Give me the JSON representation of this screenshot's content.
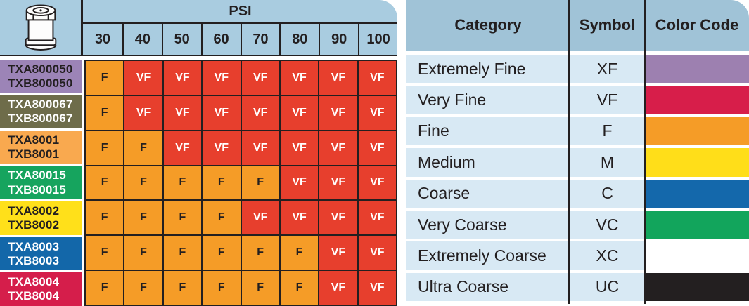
{
  "left_table": {
    "psi_label": "PSI",
    "psi_values": [
      "30",
      "40",
      "50",
      "60",
      "70",
      "80",
      "90",
      "100"
    ],
    "nozzle_icon": "spray-nozzle-icon",
    "cell_styles": {
      "F": {
        "bg": "#f59c27",
        "color": "#231f20"
      },
      "VF": {
        "bg": "#e73f2d",
        "color": "#ffffff"
      }
    },
    "rows": [
      {
        "labels": [
          "TXA800050",
          "TXB800050"
        ],
        "label_bg": "#9c84b7",
        "label_color": "#231f20",
        "cells": [
          "F",
          "VF",
          "VF",
          "VF",
          "VF",
          "VF",
          "VF",
          "VF"
        ]
      },
      {
        "labels": [
          "TXA800067",
          "TXB800067"
        ],
        "label_bg": "#6e6c4a",
        "label_color": "#ffffff",
        "cells": [
          "F",
          "VF",
          "VF",
          "VF",
          "VF",
          "VF",
          "VF",
          "VF"
        ]
      },
      {
        "labels": [
          "TXA8001",
          "TXB8001"
        ],
        "label_bg": "#f9a94f",
        "label_color": "#231f20",
        "cells": [
          "F",
          "F",
          "VF",
          "VF",
          "VF",
          "VF",
          "VF",
          "VF"
        ]
      },
      {
        "labels": [
          "TXA80015",
          "TXB80015"
        ],
        "label_bg": "#16a45e",
        "label_color": "#ffffff",
        "cells": [
          "F",
          "F",
          "F",
          "F",
          "F",
          "VF",
          "VF",
          "VF"
        ]
      },
      {
        "labels": [
          "TXA8002",
          "TXB8002"
        ],
        "label_bg": "#ffe01a",
        "label_color": "#231f20",
        "cells": [
          "F",
          "F",
          "F",
          "F",
          "VF",
          "VF",
          "VF",
          "VF"
        ]
      },
      {
        "labels": [
          "TXA8003",
          "TXB8003"
        ],
        "label_bg": "#1367a9",
        "label_color": "#ffffff",
        "cells": [
          "F",
          "F",
          "F",
          "F",
          "F",
          "F",
          "VF",
          "VF"
        ]
      },
      {
        "labels": [
          "TXA8004",
          "TXB8004"
        ],
        "label_bg": "#d51e4b",
        "label_color": "#ffffff",
        "cells": [
          "F",
          "F",
          "F",
          "F",
          "F",
          "F",
          "VF",
          "VF"
        ]
      }
    ]
  },
  "legend_table": {
    "headers": [
      "Category",
      "Symbol",
      "Color Code"
    ],
    "rows": [
      {
        "category": "Extremely Fine",
        "symbol": "XF",
        "color": "#9d80b0"
      },
      {
        "category": "Very Fine",
        "symbol": "VF",
        "color": "#d71e4a"
      },
      {
        "category": "Fine",
        "symbol": "F",
        "color": "#f59c27"
      },
      {
        "category": "Medium",
        "symbol": "M",
        "color": "#ffde19"
      },
      {
        "category": "Coarse",
        "symbol": "C",
        "color": "#1468ab"
      },
      {
        "category": "Very Coarse",
        "symbol": "VC",
        "color": "#12a55c"
      },
      {
        "category": "Extremely Coarse",
        "symbol": "XC",
        "color": "#ffffff"
      },
      {
        "category": "Ultra Coarse",
        "symbol": "UC",
        "color": "#231f20"
      }
    ]
  },
  "colors": {
    "left_header_blue": "#a9cce0",
    "legend_header_blue": "#a0c3d7",
    "legend_row_blue": "#d8e9f4",
    "border_dark": "#231f20"
  },
  "chart_data": [
    {
      "type": "table",
      "title": "Droplet size by PSI",
      "columns": [
        "Nozzle",
        "30",
        "40",
        "50",
        "60",
        "70",
        "80",
        "90",
        "100"
      ],
      "rows": [
        [
          "TXA800050 / TXB800050",
          "F",
          "VF",
          "VF",
          "VF",
          "VF",
          "VF",
          "VF",
          "VF"
        ],
        [
          "TXA800067 / TXB800067",
          "F",
          "VF",
          "VF",
          "VF",
          "VF",
          "VF",
          "VF",
          "VF"
        ],
        [
          "TXA8001 / TXB8001",
          "F",
          "F",
          "VF",
          "VF",
          "VF",
          "VF",
          "VF",
          "VF"
        ],
        [
          "TXA80015 / TXB80015",
          "F",
          "F",
          "F",
          "F",
          "F",
          "VF",
          "VF",
          "VF"
        ],
        [
          "TXA8002 / TXB8002",
          "F",
          "F",
          "F",
          "F",
          "VF",
          "VF",
          "VF",
          "VF"
        ],
        [
          "TXA8003 / TXB8003",
          "F",
          "F",
          "F",
          "F",
          "F",
          "F",
          "VF",
          "VF"
        ],
        [
          "TXA8004 / TXB8004",
          "F",
          "F",
          "F",
          "F",
          "F",
          "F",
          "VF",
          "VF"
        ]
      ]
    },
    {
      "type": "table",
      "title": "Droplet size categories",
      "columns": [
        "Category",
        "Symbol",
        "Color Code"
      ],
      "rows": [
        [
          "Extremely Fine",
          "XF",
          "purple"
        ],
        [
          "Very Fine",
          "VF",
          "crimson"
        ],
        [
          "Fine",
          "F",
          "orange"
        ],
        [
          "Medium",
          "M",
          "yellow"
        ],
        [
          "Coarse",
          "C",
          "blue"
        ],
        [
          "Very Coarse",
          "VC",
          "green"
        ],
        [
          "Extremely Coarse",
          "XC",
          "white"
        ],
        [
          "Ultra Coarse",
          "UC",
          "black"
        ]
      ]
    }
  ]
}
